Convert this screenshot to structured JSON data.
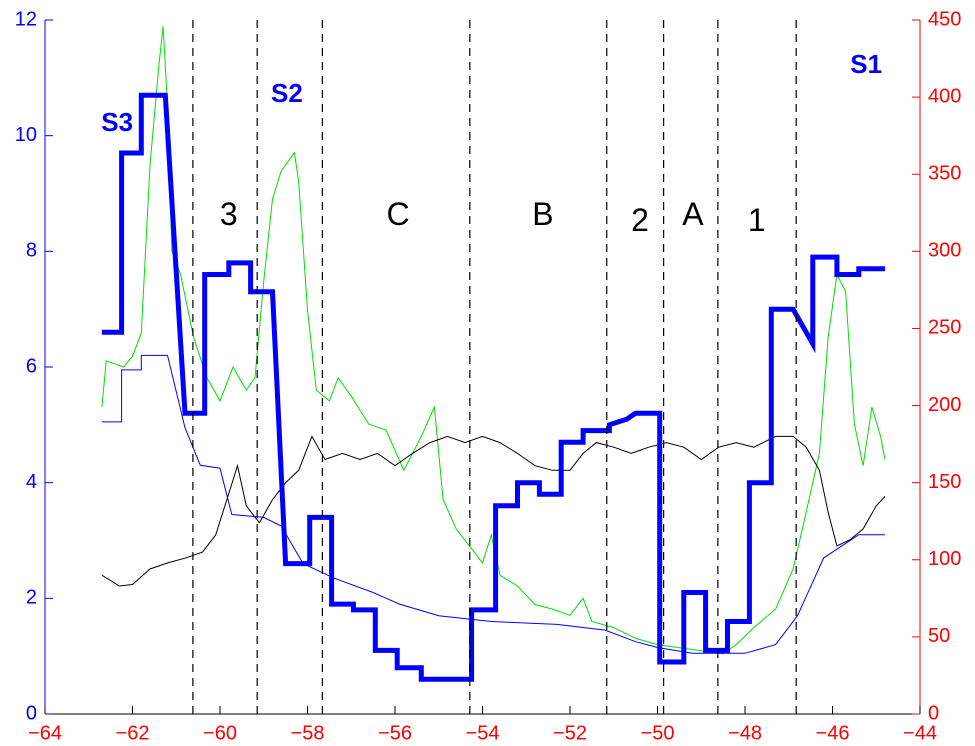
{
  "chart_data": {
    "type": "line",
    "xlim": [
      -64,
      -44
    ],
    "xticks": [
      {
        "value": -64,
        "label": "−64"
      },
      {
        "value": -62,
        "label": "−62"
      },
      {
        "value": -60,
        "label": "−60"
      },
      {
        "value": -58,
        "label": "−58"
      },
      {
        "value": -56,
        "label": "−56"
      },
      {
        "value": -54,
        "label": "−54"
      },
      {
        "value": -52,
        "label": "−52"
      },
      {
        "value": -50,
        "label": "−50"
      },
      {
        "value": -48,
        "label": "−48"
      },
      {
        "value": -46,
        "label": "−46"
      },
      {
        "value": -44,
        "label": "−44"
      }
    ],
    "ylim": [
      0,
      12
    ],
    "yticks": [
      0,
      2,
      4,
      6,
      8,
      10,
      12
    ],
    "y_color": "#0000ff",
    "y2lim": [
      0,
      450
    ],
    "y2ticks": [
      0,
      50,
      100,
      150,
      200,
      250,
      300,
      350,
      400,
      450
    ],
    "y2_color": "#ff0000",
    "series": [
      {
        "color": "#00e000",
        "width": 1,
        "axis": "y2",
        "x": [
          -62.7,
          -62.6,
          -62.2,
          -62.0,
          -61.8,
          -61.6,
          -61.4,
          -61.3,
          -61.2,
          -61.1,
          -60.9,
          -60.6,
          -60.3,
          -60.0,
          -59.7,
          -59.4,
          -59.2,
          -59.0,
          -58.8,
          -58.6,
          -58.3,
          -58.2,
          -58.0,
          -57.8,
          -57.5,
          -57.3,
          -57.0,
          -56.6,
          -56.2,
          -55.8,
          -55.4,
          -55.1,
          -54.9,
          -54.6,
          -54.3,
          -54.0,
          -53.8,
          -53.6,
          -53.2,
          -52.8,
          -52.4,
          -52.0,
          -51.7,
          -51.5,
          -51.0,
          -50.5,
          -50.0,
          -49.5,
          -49.0,
          -48.5,
          -48.2,
          -47.8,
          -47.3,
          -46.9,
          -46.6,
          -46.3,
          -46.1,
          -45.9,
          -45.7,
          -45.5,
          -45.3,
          -45.1,
          -44.9,
          -44.8
        ],
        "values": [
          199,
          229,
          225,
          232,
          247,
          356,
          420,
          446,
          394,
          300,
          285,
          244,
          218,
          203,
          225,
          210,
          218,
          281,
          334,
          352,
          364,
          345,
          262,
          210,
          203,
          218,
          206,
          188,
          184,
          158,
          180,
          199,
          139,
          120,
          109,
          98,
          116,
          90,
          83,
          71,
          68,
          64,
          75,
          60,
          56,
          49,
          45,
          43,
          41,
          39,
          45,
          56,
          68,
          94,
          131,
          169,
          244,
          285,
          274,
          188,
          161,
          199,
          180,
          165
        ]
      },
      {
        "color": "#000000",
        "width": 1,
        "axis": "y2",
        "x": [
          -62.7,
          -62.3,
          -62.0,
          -61.6,
          -61.2,
          -60.8,
          -60.4,
          -60.1,
          -59.8,
          -59.6,
          -59.4,
          -59.1,
          -58.8,
          -58.5,
          -58.2,
          -57.9,
          -57.6,
          -57.2,
          -56.8,
          -56.4,
          -56.0,
          -55.6,
          -55.2,
          -54.8,
          -54.4,
          -54.0,
          -53.6,
          -53.2,
          -52.8,
          -52.4,
          -52.0,
          -51.7,
          -51.4,
          -51.0,
          -50.6,
          -50.2,
          -49.8,
          -49.4,
          -49.0,
          -48.6,
          -48.2,
          -47.8,
          -47.3,
          -46.9,
          -46.6,
          -46.3,
          -46.1,
          -45.9,
          -45.6,
          -45.3,
          -45.0,
          -44.8
        ],
        "values": [
          90,
          83,
          84,
          94,
          98,
          101,
          105,
          116,
          143,
          161,
          135,
          124,
          139,
          150,
          158,
          180,
          165,
          169,
          165,
          169,
          161,
          169,
          176,
          180,
          176,
          180,
          176,
          169,
          161,
          158,
          158,
          169,
          176,
          173,
          169,
          173,
          176,
          173,
          165,
          173,
          176,
          173,
          180,
          180,
          173,
          158,
          131,
          109,
          113,
          120,
          135,
          141
        ]
      },
      {
        "color": "#0000ff",
        "width": 1,
        "x": [
          -62.7,
          -62.25,
          -62.25,
          -61.8,
          -61.8,
          -61.2,
          -60.8,
          -60.45,
          -60.0,
          -59.73,
          -59.0,
          -58.6,
          -58.1,
          -57.4,
          -56.5,
          -55.9,
          -55.0,
          -53.8,
          -52.3,
          -51.2,
          -50.5,
          -50.0,
          -49.2,
          -48.0,
          -47.3,
          -46.8,
          -46.5,
          -46.2,
          -45.8,
          -45.4,
          -44.8
        ],
        "values": [
          5.05,
          5.05,
          5.95,
          5.95,
          6.2,
          6.2,
          4.95,
          4.3,
          4.25,
          3.45,
          3.4,
          3.25,
          2.6,
          2.35,
          2.1,
          1.9,
          1.7,
          1.6,
          1.55,
          1.45,
          1.25,
          1.15,
          1.05,
          1.05,
          1.2,
          1.7,
          2.2,
          2.7,
          2.9,
          3.1,
          3.1
        ]
      },
      {
        "color": "#0000ff",
        "width": 5,
        "x": [
          -62.7,
          -62.25,
          -62.25,
          -61.8,
          -61.8,
          -61.25,
          -60.8,
          -60.35,
          -60.35,
          -59.8,
          -59.8,
          -59.3,
          -59.3,
          -58.8,
          -58.5,
          -57.95,
          -57.95,
          -57.45,
          -57.45,
          -56.95,
          -56.95,
          -56.45,
          -56.45,
          -55.95,
          -55.95,
          -55.4,
          -55.4,
          -54.25,
          -54.25,
          -53.7,
          -53.7,
          -53.2,
          -53.2,
          -52.7,
          -52.7,
          -52.2,
          -52.2,
          -51.7,
          -51.7,
          -51.1,
          -51.1,
          -50.7,
          -50.5,
          -49.95,
          -49.95,
          -49.4,
          -49.4,
          -48.9,
          -48.9,
          -48.4,
          -48.4,
          -47.9,
          -47.9,
          -47.4,
          -47.4,
          -46.9,
          -46.45,
          -46.45,
          -45.9,
          -45.9,
          -45.4,
          -45.4,
          -44.8
        ],
        "values": [
          6.6,
          6.6,
          9.7,
          9.7,
          10.7,
          10.7,
          5.2,
          5.2,
          7.6,
          7.6,
          7.8,
          7.8,
          7.3,
          7.3,
          2.6,
          2.6,
          3.4,
          3.4,
          1.9,
          1.9,
          1.8,
          1.8,
          1.1,
          1.1,
          0.8,
          0.8,
          0.6,
          0.6,
          1.8,
          1.8,
          3.6,
          3.6,
          4.0,
          4.0,
          3.8,
          3.8,
          4.7,
          4.7,
          4.9,
          4.9,
          5.0,
          5.1,
          5.2,
          5.2,
          0.9,
          0.9,
          2.1,
          2.1,
          1.1,
          1.1,
          1.6,
          1.6,
          4.0,
          4.0,
          7.0,
          7.0,
          6.4,
          7.9,
          7.9,
          7.6,
          7.6,
          7.7,
          7.7
        ]
      }
    ],
    "vlines": [
      -60.62,
      -59.15,
      -57.66,
      -54.29,
      -51.16,
      -49.86,
      -48.62,
      -46.83
    ],
    "annotations": [
      {
        "text": "3",
        "x": -59.8,
        "y": 8.6
      },
      {
        "text": "C",
        "x": -55.93,
        "y": 8.6
      },
      {
        "text": "B",
        "x": -52.62,
        "y": 8.6
      },
      {
        "text": "2",
        "x": -50.4,
        "y": 8.5
      },
      {
        "text": "A",
        "x": -49.19,
        "y": 8.6
      },
      {
        "text": "1",
        "x": -47.73,
        "y": 8.5
      }
    ],
    "series_labels": [
      {
        "text": "S3",
        "x": -62.35,
        "y": 10.2
      },
      {
        "text": "S2",
        "x": -58.47,
        "y": 10.7
      },
      {
        "text": "S1",
        "x": -45.23,
        "y": 11.2
      }
    ]
  }
}
